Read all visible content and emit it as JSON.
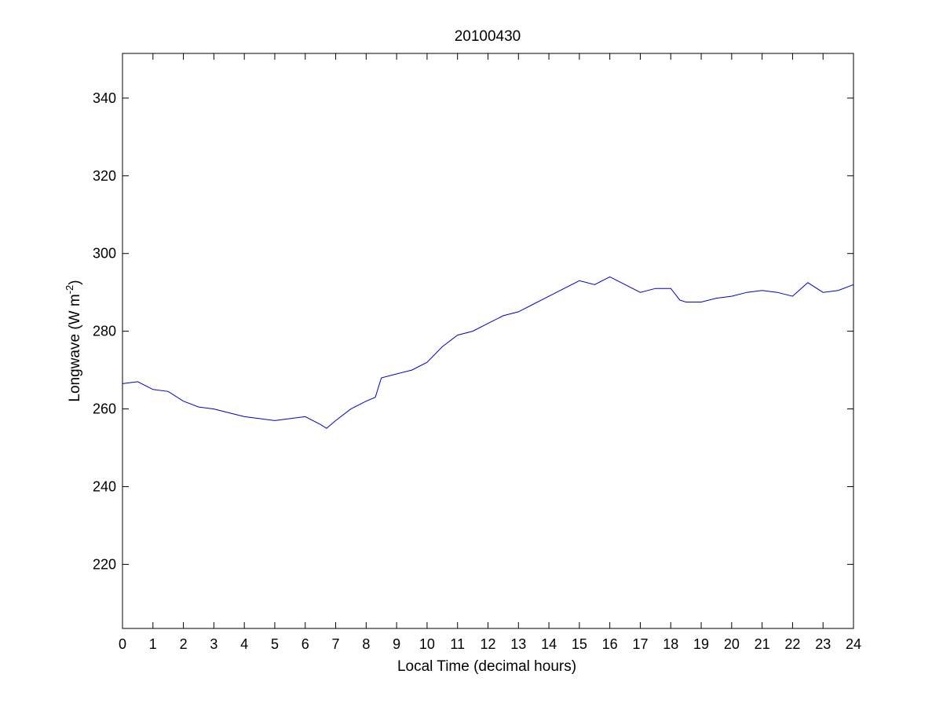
{
  "chart_data": {
    "type": "line",
    "title": "20100430",
    "xlabel": "Local Time (decimal hours)",
    "ylabel": "Longwave (W m",
    "ylabel_superscript": "-2",
    "ylabel_suffix": ")",
    "xlim": [
      0,
      24
    ],
    "ylim": [
      203.5,
      351.5
    ],
    "xticks": [
      0,
      1,
      2,
      3,
      4,
      5,
      6,
      7,
      8,
      9,
      10,
      11,
      12,
      13,
      14,
      15,
      16,
      17,
      18,
      19,
      20,
      21,
      22,
      23,
      24
    ],
    "yticks": [
      220,
      240,
      260,
      280,
      300,
      320,
      340
    ],
    "grid": false,
    "line_color": "#0000cc",
    "series": [
      {
        "x": [
          0,
          0.5,
          1,
          1.5,
          2,
          2.5,
          3,
          3.5,
          4,
          4.5,
          5,
          5.5,
          6,
          6.5,
          6.7,
          7,
          7.5,
          8,
          8.3,
          8.5,
          9,
          9.5,
          10,
          10.5,
          11,
          11.5,
          12,
          12.5,
          13,
          13.5,
          14,
          14.5,
          15,
          15.5,
          16,
          16.5,
          17,
          17.5,
          18,
          18.3,
          18.5,
          19,
          19.5,
          20,
          20.5,
          21,
          21.5,
          22,
          22.5,
          23,
          23.5,
          24
        ],
        "y": [
          266.5,
          267,
          265,
          264.5,
          262,
          260.5,
          260,
          259,
          258,
          257.5,
          257,
          257.5,
          258,
          256,
          255,
          257,
          260,
          262,
          263,
          268,
          269,
          270,
          272,
          276,
          279,
          280,
          282,
          284,
          285,
          287,
          289,
          291,
          293,
          292,
          294,
          292,
          290,
          291,
          291,
          288,
          287.5,
          287.5,
          288.5,
          289,
          290,
          290.5,
          290,
          289,
          292.5,
          290,
          290.5,
          292
        ]
      }
    ]
  }
}
